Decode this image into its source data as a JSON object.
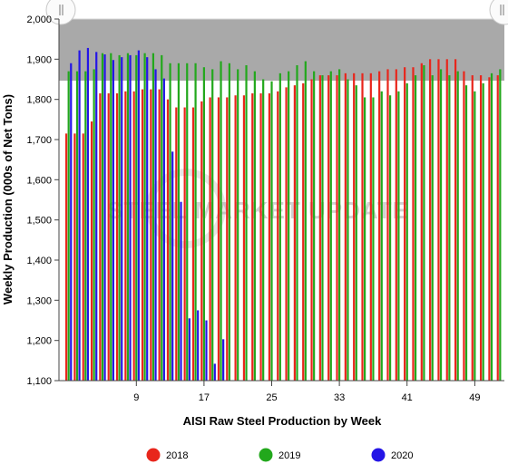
{
  "chart_data": {
    "type": "bar",
    "xlabel": "AISI Raw Steel Production by Week",
    "ylabel": "Weekly Production (000s of Net Tons)",
    "ylim": [
      1100,
      2000
    ],
    "yticks": [
      "1,100",
      "1,200",
      "1,300",
      "1,400",
      "1,500",
      "1,600",
      "1,700",
      "1,800",
      "1,900",
      "2,000"
    ],
    "xticks": [
      9,
      17,
      25,
      33,
      41,
      49
    ],
    "xrange": [
      1,
      52
    ],
    "grid": false,
    "legend_position": "bottom",
    "watermark": "STEEL MARKET UPDATE",
    "series": [
      {
        "name": "2018",
        "color": "#e8261c",
        "values": [
          1715,
          1715,
          1715,
          1745,
          1815,
          1815,
          1815,
          1820,
          1820,
          1825,
          1825,
          1825,
          1800,
          1780,
          1780,
          1780,
          1795,
          1805,
          1805,
          1805,
          1810,
          1810,
          1815,
          1815,
          1815,
          1820,
          1830,
          1835,
          1840,
          1850,
          1860,
          1860,
          1860,
          1865,
          1865,
          1865,
          1865,
          1870,
          1875,
          1875,
          1880,
          1880,
          1890,
          1900,
          1900,
          1900,
          1900,
          1870,
          1860,
          1860,
          1855,
          1860
        ]
      },
      {
        "name": "2019",
        "color": "#22a81c",
        "values": [
          1870,
          1870,
          1870,
          1875,
          1915,
          1915,
          1910,
          1915,
          1910,
          1915,
          1915,
          1910,
          1890,
          1890,
          1890,
          1890,
          1880,
          1875,
          1895,
          1890,
          1875,
          1885,
          1870,
          1850,
          1845,
          1865,
          1870,
          1885,
          1895,
          1870,
          1860,
          1870,
          1875,
          1850,
          1835,
          1805,
          1805,
          1820,
          1810,
          1820,
          1840,
          1860,
          1885,
          1860,
          1875,
          1860,
          1870,
          1835,
          1820,
          1840,
          1865,
          1875
        ]
      },
      {
        "name": "2020",
        "color": "#2415e6",
        "values": [
          1890,
          1922,
          1928,
          1918,
          1912,
          1898,
          1905,
          1910,
          1922,
          1905,
          1875,
          1852,
          1670,
          1545,
          1255,
          1275,
          1250,
          1142,
          1203
        ]
      }
    ]
  },
  "legend": [
    {
      "label": "2018",
      "color": "#e8261c"
    },
    {
      "label": "2019",
      "color": "#22a81c"
    },
    {
      "label": "2020",
      "color": "#2415e6"
    }
  ]
}
